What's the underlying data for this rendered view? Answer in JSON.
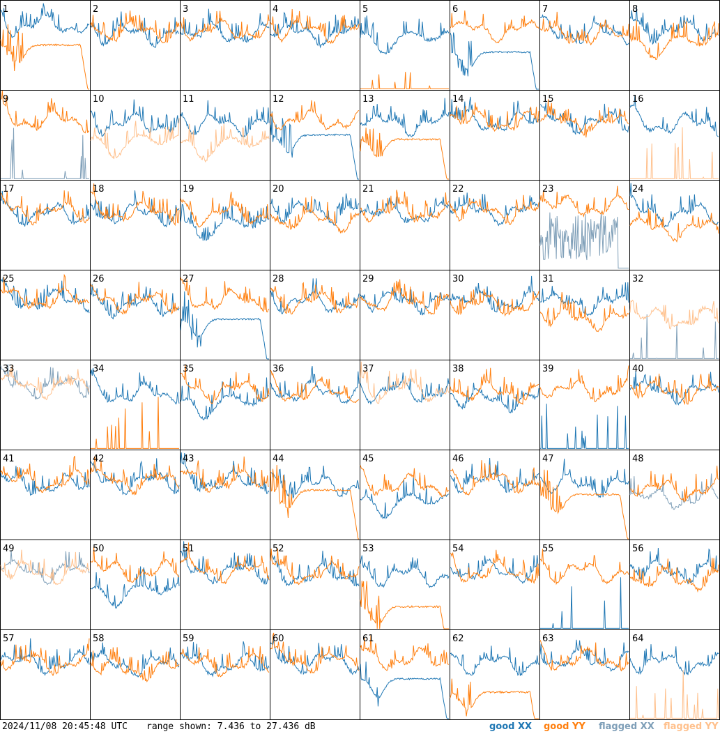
{
  "footer": {
    "timestamp": "2024/11/08 20:45:48 UTC",
    "range_text": "range shown: 7.436 to 27.436 dB"
  },
  "legend": [
    {
      "label": "good XX",
      "color": "#1f77b4"
    },
    {
      "label": "good YY",
      "color": "#ff7f0e"
    },
    {
      "label": "flagged XX",
      "color": "#7f9fb8"
    },
    {
      "label": "flagged YY",
      "color": "#ffc08c"
    }
  ],
  "chart_data": {
    "type": "line",
    "layout": "8x8 small multiples",
    "ylim": [
      7.436,
      27.436
    ],
    "y_unit": "dB",
    "grid": false,
    "legend_position": "bottom-right",
    "panels": [
      {
        "label": "1",
        "xx": {
          "status": "good",
          "level": 0.72
        },
        "yy": {
          "status": "good",
          "level": 0.5,
          "shape": "dip_rolloff"
        }
      },
      {
        "label": "2",
        "xx": {
          "status": "good",
          "level": 0.62
        },
        "yy": {
          "status": "good",
          "level": 0.65
        }
      },
      {
        "label": "3",
        "xx": {
          "status": "good",
          "level": 0.62
        },
        "yy": {
          "status": "good",
          "level": 0.66
        }
      },
      {
        "label": "4",
        "xx": {
          "status": "good",
          "level": 0.62
        },
        "yy": {
          "status": "good",
          "level": 0.66
        }
      },
      {
        "label": "5",
        "xx": {
          "status": "good",
          "level": 0.6,
          "shape": "dip"
        },
        "yy": {
          "status": "good",
          "level": 0.0,
          "shape": "flat_low"
        }
      },
      {
        "label": "6",
        "xx": {
          "status": "good",
          "level": 0.42,
          "shape": "dip_rolloff"
        },
        "yy": {
          "status": "good",
          "level": 0.66
        }
      },
      {
        "label": "7",
        "xx": {
          "status": "good",
          "level": 0.62
        },
        "yy": {
          "status": "good",
          "level": 0.6
        }
      },
      {
        "label": "8",
        "xx": {
          "status": "good",
          "level": 0.65
        },
        "yy": {
          "status": "good",
          "level": 0.55,
          "shape": "dip"
        }
      },
      {
        "label": "9",
        "xx": {
          "status": "flagged",
          "level": 0.0,
          "shape": "spikes_low"
        },
        "yy": {
          "status": "good",
          "level": 0.66
        }
      },
      {
        "label": "10",
        "xx": {
          "status": "good",
          "level": 0.62
        },
        "yy": {
          "status": "flagged",
          "level": 0.45,
          "shape": "dip"
        }
      },
      {
        "label": "11",
        "xx": {
          "status": "good",
          "level": 0.62
        },
        "yy": {
          "status": "flagged",
          "level": 0.42,
          "shape": "dip"
        }
      },
      {
        "label": "12",
        "xx": {
          "status": "good",
          "level": 0.5,
          "shape": "dip_rolloff"
        },
        "yy": {
          "status": "good",
          "level": 0.66
        }
      },
      {
        "label": "13",
        "xx": {
          "status": "good",
          "level": 0.62
        },
        "yy": {
          "status": "good",
          "level": 0.45,
          "shape": "dip_rolloff"
        }
      },
      {
        "label": "14",
        "xx": {
          "status": "good",
          "level": 0.64
        },
        "yy": {
          "status": "good",
          "level": 0.64
        }
      },
      {
        "label": "15",
        "xx": {
          "status": "good",
          "level": 0.64
        },
        "yy": {
          "status": "good",
          "level": 0.62
        }
      },
      {
        "label": "16",
        "xx": {
          "status": "good",
          "level": 0.62
        },
        "yy": {
          "status": "flagged",
          "level": 0.0,
          "shape": "spikes_low"
        }
      },
      {
        "label": "17",
        "xx": {
          "status": "good",
          "level": 0.62
        },
        "yy": {
          "status": "good",
          "level": 0.64
        }
      },
      {
        "label": "18",
        "xx": {
          "status": "good",
          "level": 0.62
        },
        "yy": {
          "status": "good",
          "level": 0.64
        }
      },
      {
        "label": "19",
        "xx": {
          "status": "good",
          "level": 0.52,
          "shape": "dip"
        },
        "yy": {
          "status": "good",
          "level": 0.62
        }
      },
      {
        "label": "20",
        "xx": {
          "status": "good",
          "level": 0.64
        },
        "yy": {
          "status": "good",
          "level": 0.55
        }
      },
      {
        "label": "21",
        "xx": {
          "status": "good",
          "level": 0.62
        },
        "yy": {
          "status": "good",
          "level": 0.64
        }
      },
      {
        "label": "22",
        "xx": {
          "status": "good",
          "level": 0.64
        },
        "yy": {
          "status": "good",
          "level": 0.64
        }
      },
      {
        "label": "23",
        "xx": {
          "status": "flagged",
          "level": 0.35,
          "shape": "noise_wide"
        },
        "yy": {
          "status": "good",
          "level": 0.7
        }
      },
      {
        "label": "24",
        "xx": {
          "status": "good",
          "level": 0.62
        },
        "yy": {
          "status": "good",
          "level": 0.45
        }
      },
      {
        "label": "25",
        "xx": {
          "status": "good",
          "level": 0.66
        },
        "yy": {
          "status": "good",
          "level": 0.66
        }
      },
      {
        "label": "26",
        "xx": {
          "status": "good",
          "level": 0.6
        },
        "yy": {
          "status": "good",
          "level": 0.64
        }
      },
      {
        "label": "27",
        "xx": {
          "status": "good",
          "level": 0.45,
          "shape": "dip_rolloff"
        },
        "yy": {
          "status": "good",
          "level": 0.66
        }
      },
      {
        "label": "28",
        "xx": {
          "status": "good",
          "level": 0.64
        },
        "yy": {
          "status": "good",
          "level": 0.64
        }
      },
      {
        "label": "29",
        "xx": {
          "status": "good",
          "level": 0.64
        },
        "yy": {
          "status": "good",
          "level": 0.64
        }
      },
      {
        "label": "30",
        "xx": {
          "status": "good",
          "level": 0.64
        },
        "yy": {
          "status": "good",
          "level": 0.6
        }
      },
      {
        "label": "31",
        "xx": {
          "status": "good",
          "level": 0.62
        },
        "yy": {
          "status": "good",
          "level": 0.45
        }
      },
      {
        "label": "32",
        "xx": {
          "status": "flagged",
          "level": 0.0,
          "shape": "spikes_low"
        },
        "yy": {
          "status": "flagged",
          "level": 0.45
        }
      },
      {
        "label": "33",
        "xx": {
          "status": "flagged",
          "level": 0.7
        },
        "yy": {
          "status": "flagged",
          "level": 0.7
        }
      },
      {
        "label": "34",
        "xx": {
          "status": "good",
          "level": 0.62
        },
        "yy": {
          "status": "good",
          "level": 0.0,
          "shape": "spikes_low"
        }
      },
      {
        "label": "35",
        "xx": {
          "status": "good",
          "level": 0.55,
          "shape": "dip"
        },
        "yy": {
          "status": "good",
          "level": 0.66
        }
      },
      {
        "label": "36",
        "xx": {
          "status": "good",
          "level": 0.64
        },
        "yy": {
          "status": "good",
          "level": 0.64
        }
      },
      {
        "label": "37",
        "xx": {
          "status": "good",
          "level": 0.64
        },
        "yy": {
          "status": "flagged",
          "level": 0.66
        }
      },
      {
        "label": "38",
        "xx": {
          "status": "good",
          "level": 0.55
        },
        "yy": {
          "status": "good",
          "level": 0.64
        }
      },
      {
        "label": "39",
        "xx": {
          "status": "good",
          "level": 0.0,
          "shape": "spikes_low"
        },
        "yy": {
          "status": "good",
          "level": 0.66
        }
      },
      {
        "label": "40",
        "xx": {
          "status": "good",
          "level": 0.64
        },
        "yy": {
          "status": "good",
          "level": 0.64
        }
      },
      {
        "label": "41",
        "xx": {
          "status": "good",
          "level": 0.6
        },
        "yy": {
          "status": "good",
          "level": 0.64
        }
      },
      {
        "label": "42",
        "xx": {
          "status": "good",
          "level": 0.64
        },
        "yy": {
          "status": "good",
          "level": 0.64
        }
      },
      {
        "label": "43",
        "xx": {
          "status": "good",
          "level": 0.64
        },
        "yy": {
          "status": "good",
          "level": 0.64
        }
      },
      {
        "label": "44",
        "xx": {
          "status": "good",
          "level": 0.6
        },
        "yy": {
          "status": "good",
          "level": 0.55,
          "shape": "dip_rolloff"
        }
      },
      {
        "label": "45",
        "xx": {
          "status": "good",
          "level": 0.45,
          "shape": "dip"
        },
        "yy": {
          "status": "good",
          "level": 0.6
        }
      },
      {
        "label": "46",
        "xx": {
          "status": "good",
          "level": 0.64
        },
        "yy": {
          "status": "good",
          "level": 0.64
        }
      },
      {
        "label": "47",
        "xx": {
          "status": "good",
          "level": 0.6
        },
        "yy": {
          "status": "good",
          "level": 0.5,
          "shape": "dip_rolloff"
        }
      },
      {
        "label": "48",
        "xx": {
          "status": "flagged",
          "level": 0.45
        },
        "yy": {
          "status": "good",
          "level": 0.55
        }
      },
      {
        "label": "49",
        "xx": {
          "status": "flagged",
          "level": 0.64
        },
        "yy": {
          "status": "flagged",
          "level": 0.62
        }
      },
      {
        "label": "50",
        "xx": {
          "status": "good",
          "level": 0.45,
          "shape": "dip"
        },
        "yy": {
          "status": "good",
          "level": 0.64
        }
      },
      {
        "label": "51",
        "xx": {
          "status": "good",
          "level": 0.64
        },
        "yy": {
          "status": "good",
          "level": 0.64
        }
      },
      {
        "label": "52",
        "xx": {
          "status": "good",
          "level": 0.6
        },
        "yy": {
          "status": "good",
          "level": 0.62
        }
      },
      {
        "label": "53",
        "xx": {
          "status": "good",
          "level": 0.6
        },
        "yy": {
          "status": "good",
          "level": 0.25,
          "shape": "dip_rolloff"
        }
      },
      {
        "label": "54",
        "xx": {
          "status": "good",
          "level": 0.64
        },
        "yy": {
          "status": "good",
          "level": 0.64
        }
      },
      {
        "label": "55",
        "xx": {
          "status": "good",
          "level": 0.0,
          "shape": "spikes_low"
        },
        "yy": {
          "status": "good",
          "level": 0.64
        }
      },
      {
        "label": "56",
        "xx": {
          "status": "good",
          "level": 0.64
        },
        "yy": {
          "status": "good",
          "level": 0.55
        }
      },
      {
        "label": "57",
        "xx": {
          "status": "good",
          "level": 0.62
        },
        "yy": {
          "status": "good",
          "level": 0.62
        }
      },
      {
        "label": "58",
        "xx": {
          "status": "good",
          "level": 0.6
        },
        "yy": {
          "status": "good",
          "level": 0.55
        }
      },
      {
        "label": "59",
        "xx": {
          "status": "good",
          "level": 0.6
        },
        "yy": {
          "status": "good",
          "level": 0.6
        }
      },
      {
        "label": "60",
        "xx": {
          "status": "good",
          "level": 0.64
        },
        "yy": {
          "status": "good",
          "level": 0.64
        }
      },
      {
        "label": "61",
        "xx": {
          "status": "good",
          "level": 0.45,
          "shape": "dip_rolloff"
        },
        "yy": {
          "status": "good",
          "level": 0.66
        }
      },
      {
        "label": "62",
        "xx": {
          "status": "good",
          "level": 0.62
        },
        "yy": {
          "status": "good",
          "level": 0.3,
          "shape": "dip_rolloff"
        }
      },
      {
        "label": "63",
        "xx": {
          "status": "good",
          "level": 0.66
        },
        "yy": {
          "status": "good",
          "level": 0.66
        }
      },
      {
        "label": "64",
        "xx": {
          "status": "good",
          "level": 0.62
        },
        "yy": {
          "status": "flagged",
          "level": 0.0,
          "shape": "spikes_low"
        }
      }
    ]
  }
}
